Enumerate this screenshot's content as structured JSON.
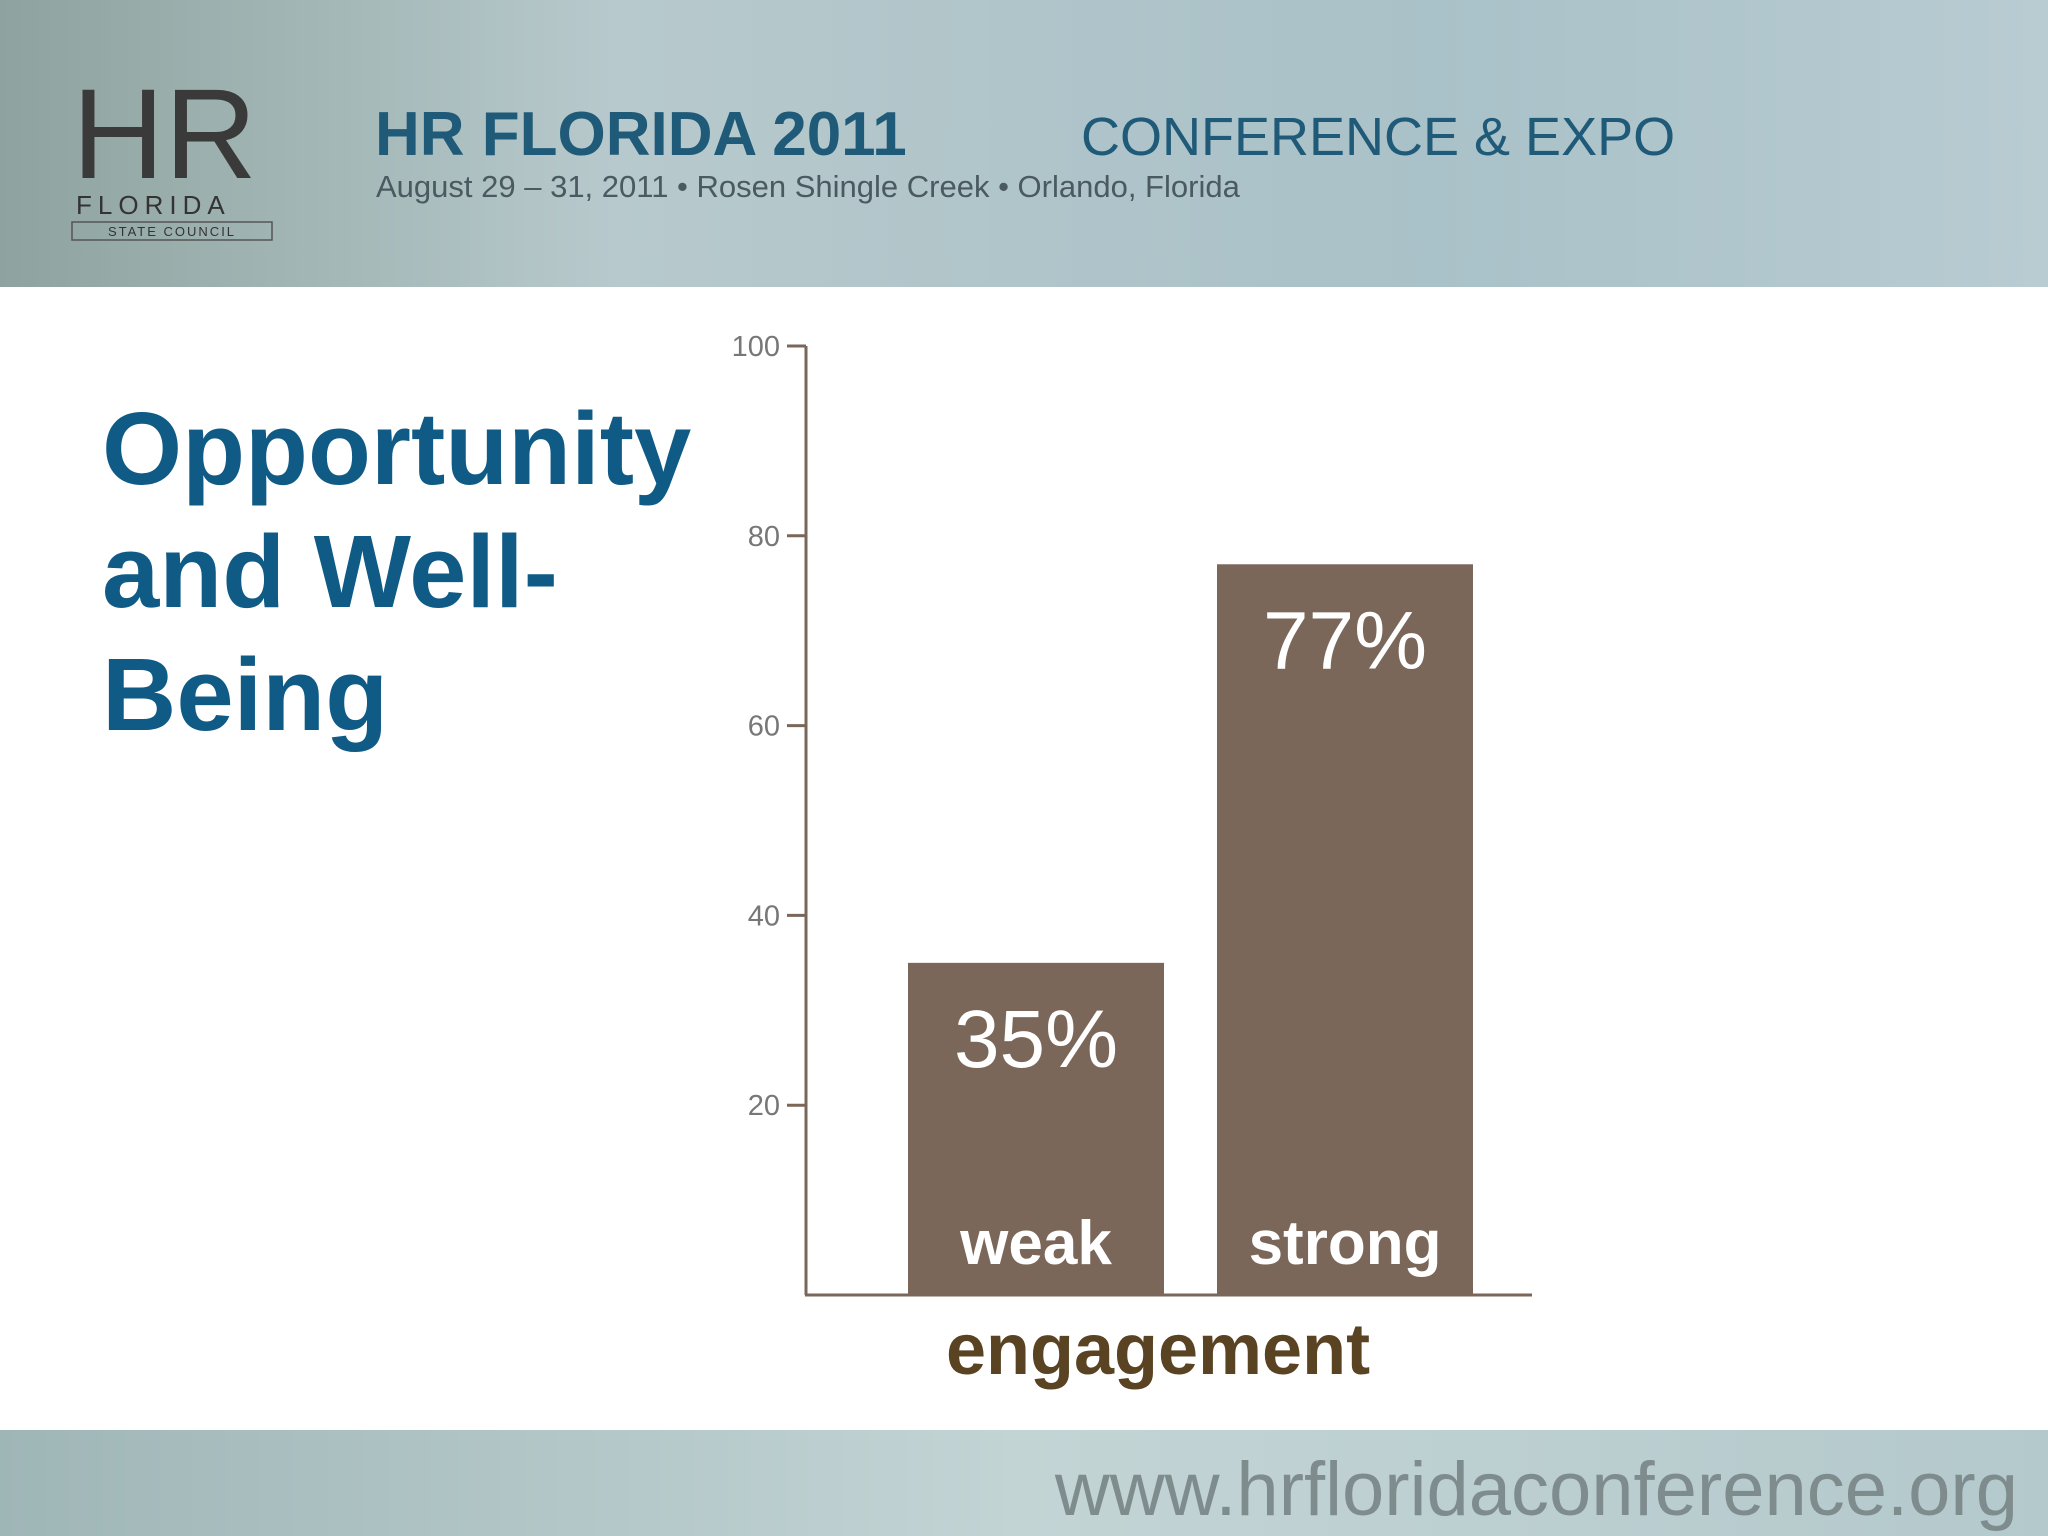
{
  "header": {
    "logo_text": "HR",
    "logo_subtitle": "FLORIDA",
    "logo_caption": "STATE COUNCIL",
    "title": "HR FLORIDA 2011",
    "subtitle": "CONFERENCE & EXPO",
    "details": "August 29 – 31, 2011 • Rosen Shingle Creek • Orlando, Florida"
  },
  "footer": {
    "url": "www.hrfloridaconference.org"
  },
  "chart_data": {
    "type": "bar",
    "title": "Opportunity and Well-Being",
    "categories": [
      "weak",
      "strong"
    ],
    "values": [
      35,
      77
    ],
    "value_labels": [
      "35%",
      "77%"
    ],
    "x_label": "engagement",
    "color": "#7a6759",
    "ylim": [
      0,
      100
    ],
    "yticks": [
      20,
      40,
      60,
      80,
      100
    ],
    "grid": false
  }
}
